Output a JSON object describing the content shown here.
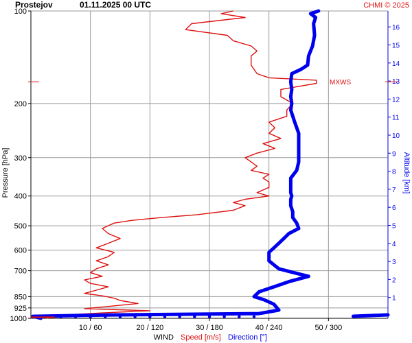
{
  "header": {
    "station": "Prostejov",
    "datetime": "01.11.2025 00 UTC",
    "copyright": "CHMI © 2025"
  },
  "chart_data": {
    "type": "line",
    "pressure_axis": {
      "label": "Pressure [hPa]",
      "ticks": [
        100,
        200,
        300,
        400,
        500,
        600,
        700,
        850,
        925,
        1000
      ],
      "scale": "log",
      "range": [
        100,
        1000
      ]
    },
    "altitude_axis": {
      "label": "Altitude [km]",
      "ticks": [
        1,
        2,
        3,
        4,
        5,
        6,
        7,
        8,
        9,
        10,
        11,
        12,
        13,
        14,
        15,
        16
      ]
    },
    "bottom_axis": {
      "title": "WIND",
      "speed_label": "Speed [m/s]",
      "direction_label": "Direction [°]",
      "speed_ticks": [
        10,
        20,
        30,
        40,
        50
      ],
      "direction_ticks": [
        60,
        120,
        180,
        240,
        300
      ],
      "tick_labels": [
        "10 / 60",
        "20 / 120",
        "30 / 180",
        "40 / 240",
        "50 / 300"
      ],
      "speed_range": [
        0,
        60
      ],
      "direction_range": [
        0,
        360
      ]
    },
    "annotation": {
      "text": "MXWS",
      "pressure": 170
    },
    "colors": {
      "speed": "#dd1111",
      "direction": "#0000ee",
      "grid": "#999999",
      "text": "#000000"
    },
    "series": [
      {
        "name": "Speed [m/s]",
        "units": "m/s",
        "points": [
          [
            1000,
            3
          ],
          [
            985,
            1
          ],
          [
            972,
            7
          ],
          [
            960,
            12
          ],
          [
            945,
            20
          ],
          [
            930,
            9
          ],
          [
            915,
            13
          ],
          [
            895,
            18
          ],
          [
            875,
            15
          ],
          [
            860,
            14
          ],
          [
            845,
            12
          ],
          [
            830,
            9
          ],
          [
            810,
            11
          ],
          [
            790,
            13
          ],
          [
            770,
            10
          ],
          [
            750,
            9
          ],
          [
            730,
            12
          ],
          [
            710,
            10
          ],
          [
            690,
            11
          ],
          [
            670,
            13
          ],
          [
            650,
            11
          ],
          [
            630,
            13
          ],
          [
            610,
            14
          ],
          [
            590,
            11
          ],
          [
            570,
            13
          ],
          [
            550,
            15
          ],
          [
            530,
            13
          ],
          [
            510,
            12
          ],
          [
            490,
            14
          ],
          [
            480,
            17
          ],
          [
            470,
            22
          ],
          [
            460,
            28
          ],
          [
            445,
            34
          ],
          [
            430,
            36
          ],
          [
            420,
            34
          ],
          [
            410,
            36
          ],
          [
            400,
            40
          ],
          [
            390,
            38
          ],
          [
            375,
            40
          ],
          [
            360,
            40
          ],
          [
            350,
            39
          ],
          [
            340,
            40
          ],
          [
            330,
            37
          ],
          [
            320,
            38
          ],
          [
            310,
            37
          ],
          [
            300,
            36
          ],
          [
            290,
            38
          ],
          [
            280,
            41
          ],
          [
            270,
            39
          ],
          [
            260,
            42
          ],
          [
            250,
            40
          ],
          [
            240,
            41
          ],
          [
            230,
            40
          ],
          [
            220,
            43
          ],
          [
            210,
            43
          ],
          [
            200,
            44
          ],
          [
            190,
            42
          ],
          [
            180,
            42
          ],
          [
            172,
            48
          ],
          [
            168,
            48
          ],
          [
            165,
            40
          ],
          [
            160,
            38
          ],
          [
            150,
            37
          ],
          [
            140,
            37
          ],
          [
            135,
            38
          ],
          [
            130,
            37
          ],
          [
            125,
            34
          ],
          [
            120,
            33
          ],
          [
            115,
            26
          ],
          [
            110,
            27
          ],
          [
            105,
            36
          ],
          [
            102,
            32
          ],
          [
            100,
            34
          ]
        ]
      },
      {
        "name": "Direction [°]",
        "units": "deg",
        "points": [
          [
            1000,
            10
          ],
          [
            985,
            2
          ],
          [
            975,
            80
          ],
          [
            965,
            230
          ],
          [
            940,
            250
          ],
          [
            900,
            245
          ],
          [
            870,
            235
          ],
          [
            850,
            225
          ],
          [
            820,
            230
          ],
          [
            790,
            245
          ],
          [
            760,
            260
          ],
          [
            730,
            280
          ],
          [
            710,
            265
          ],
          [
            690,
            250
          ],
          [
            670,
            245
          ],
          [
            650,
            240
          ],
          [
            630,
            240
          ],
          [
            610,
            240
          ],
          [
            590,
            245
          ],
          [
            570,
            250
          ],
          [
            550,
            255
          ],
          [
            530,
            260
          ],
          [
            510,
            270
          ],
          [
            490,
            268
          ],
          [
            470,
            264
          ],
          [
            450,
            264
          ],
          [
            430,
            262
          ],
          [
            410,
            262
          ],
          [
            400,
            263
          ],
          [
            390,
            262
          ],
          [
            370,
            262
          ],
          [
            350,
            262
          ],
          [
            330,
            268
          ],
          [
            310,
            270
          ],
          [
            290,
            270
          ],
          [
            270,
            270
          ],
          [
            250,
            270
          ],
          [
            230,
            266
          ],
          [
            210,
            262
          ],
          [
            200,
            263
          ],
          [
            190,
            262
          ],
          [
            180,
            263
          ],
          [
            170,
            262
          ],
          [
            160,
            263
          ],
          [
            155,
            272
          ],
          [
            150,
            279
          ],
          [
            140,
            280
          ],
          [
            130,
            284
          ],
          [
            120,
            286
          ],
          [
            110,
            285
          ],
          [
            105,
            287
          ],
          [
            102,
            282
          ],
          [
            100,
            290
          ]
        ]
      }
    ],
    "near_surface_direction_markers": {
      "pressure": 988,
      "directions": [
        5,
        15,
        30,
        45,
        60,
        75,
        90,
        105,
        120,
        135,
        150,
        165,
        180,
        195,
        210,
        225
      ]
    },
    "surface_speed_marker": {
      "pressure": 992,
      "speed_from": 0,
      "speed_to": 4
    },
    "right_edge_direction_marker": {
      "pressure": 985,
      "direction_from": 325,
      "direction_to": 360
    }
  }
}
